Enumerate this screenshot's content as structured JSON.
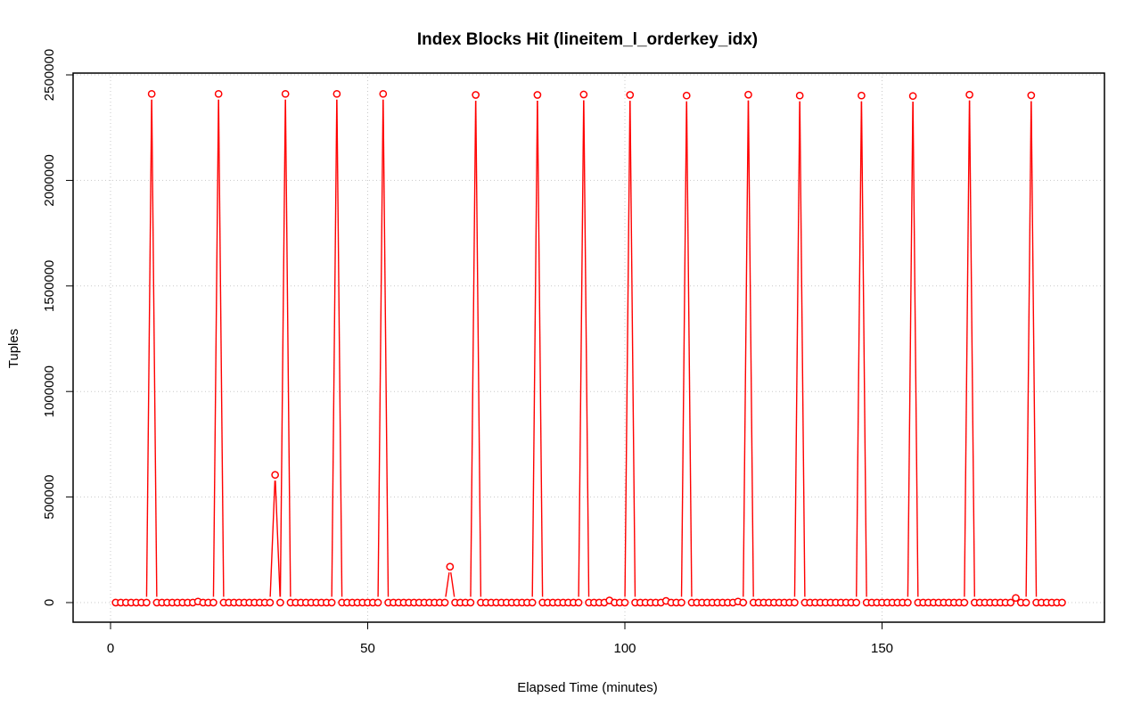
{
  "chart_data": {
    "type": "line",
    "title": "Index Blocks Hit (lineitem_l_orderkey_idx)",
    "xlabel": "Elapsed Time (minutes)",
    "ylabel": "Tuples",
    "xlim": [
      0,
      185
    ],
    "ylim": [
      0,
      2500000
    ],
    "x_ticks": [
      0,
      50,
      100,
      150
    ],
    "y_ticks": [
      0,
      500000,
      1000000,
      1500000,
      2000000,
      2500000
    ],
    "x_tick_labels": [
      "0",
      "50",
      "100",
      "150"
    ],
    "y_tick_labels": [
      "0",
      "500000",
      "1000000",
      "1500000",
      "2000000",
      "2500000"
    ],
    "grid": true,
    "series_color": "#ff0000",
    "markers": "open-circle",
    "x_start": 1,
    "values": [
      0,
      0,
      0,
      0,
      0,
      0,
      0,
      2410000,
      0,
      0,
      0,
      0,
      0,
      0,
      0,
      0,
      5000,
      0,
      0,
      0,
      2410000,
      0,
      0,
      0,
      0,
      0,
      0,
      0,
      0,
      0,
      0,
      605000,
      0,
      2410000,
      0,
      0,
      0,
      0,
      0,
      0,
      0,
      0,
      0,
      2410000,
      0,
      0,
      0,
      0,
      0,
      0,
      0,
      0,
      2410000,
      0,
      0,
      0,
      0,
      0,
      0,
      0,
      0,
      0,
      0,
      0,
      0,
      170000,
      0,
      0,
      0,
      0,
      2405000,
      0,
      0,
      0,
      0,
      0,
      0,
      0,
      0,
      0,
      0,
      0,
      2405000,
      0,
      0,
      0,
      0,
      0,
      0,
      0,
      0,
      2407000,
      0,
      0,
      0,
      0,
      10000,
      0,
      0,
      0,
      2405000,
      0,
      0,
      0,
      0,
      0,
      0,
      8000,
      0,
      0,
      0,
      2402000,
      0,
      0,
      0,
      0,
      0,
      0,
      0,
      0,
      0,
      5000,
      0,
      2406000,
      0,
      0,
      0,
      0,
      0,
      0,
      0,
      0,
      0,
      2402000,
      0,
      0,
      0,
      0,
      0,
      0,
      0,
      0,
      0,
      0,
      0,
      2402000,
      0,
      0,
      0,
      0,
      0,
      0,
      0,
      0,
      0,
      2400000,
      0,
      0,
      0,
      0,
      0,
      0,
      0,
      0,
      0,
      0,
      2406000,
      0,
      0,
      0,
      0,
      0,
      0,
      0,
      0,
      22000,
      0,
      0,
      2403000,
      0,
      0,
      0,
      0,
      0,
      0
    ]
  }
}
